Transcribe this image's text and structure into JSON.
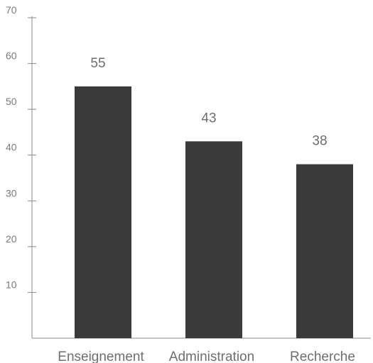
{
  "chart_data": {
    "type": "bar",
    "categories": [
      "Enseignement",
      "Administration",
      "Recherche"
    ],
    "values": [
      55,
      43,
      38
    ],
    "title": "",
    "xlabel": "",
    "ylabel": "",
    "ylim": [
      0,
      70
    ],
    "yticks": [
      10,
      20,
      30,
      40,
      50,
      60,
      70
    ],
    "grid": false,
    "legend": "none",
    "data_labels": true,
    "colors": {
      "bar": "#3a3a3a",
      "axis": "#8a8a8a",
      "text": "#6e6e6e"
    }
  }
}
